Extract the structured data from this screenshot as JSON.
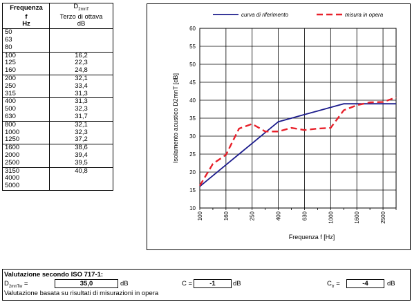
{
  "table": {
    "head_freq": [
      "Frequenza",
      "f",
      "Hz"
    ],
    "head_d": "D",
    "head_d_sub": "2mnT",
    "head_d2": "Terzo di ottava",
    "head_d3": "dB",
    "rows": [
      {
        "f": "50",
        "v": ""
      },
      {
        "f": "63",
        "v": ""
      },
      {
        "f": "80",
        "v": ""
      },
      {
        "f": "100",
        "v": "16,2"
      },
      {
        "f": "125",
        "v": "22,3"
      },
      {
        "f": "160",
        "v": "24,8"
      },
      {
        "f": "200",
        "v": "32,1"
      },
      {
        "f": "250",
        "v": "33,4"
      },
      {
        "f": "315",
        "v": "31,3"
      },
      {
        "f": "400",
        "v": "31,3"
      },
      {
        "f": "500",
        "v": "32,3"
      },
      {
        "f": "630",
        "v": "31,7"
      },
      {
        "f": "800",
        "v": "32,1"
      },
      {
        "f": "1000",
        "v": "32,3"
      },
      {
        "f": "1250",
        "v": "37,2"
      },
      {
        "f": "1600",
        "v": "38,6"
      },
      {
        "f": "2000",
        "v": "39,4"
      },
      {
        "f": "2500",
        "v": "39,5"
      },
      {
        "f": "3150",
        "v": "40,8"
      },
      {
        "f": "4000",
        "v": ""
      },
      {
        "f": "5000",
        "v": ""
      }
    ]
  },
  "chart_data": {
    "type": "line",
    "ylabel": "Isolamento acustico D2mnT [dB]",
    "xlabel": "Frequenza f [Hz]",
    "x_categories": [
      "100",
      "125",
      "160",
      "200",
      "250",
      "315",
      "400",
      "500",
      "630",
      "800",
      "1000",
      "1250",
      "1600",
      "2000",
      "2500",
      "3150"
    ],
    "x_tick_labels": [
      "100",
      "160",
      "250",
      "400",
      "630",
      "1000",
      "1600",
      "2500"
    ],
    "ylim": [
      10,
      60
    ],
    "y_ticks": [
      10,
      15,
      20,
      25,
      30,
      35,
      40,
      45,
      50,
      55,
      60
    ],
    "grid": true,
    "legend_position": "top",
    "series": [
      {
        "name": "curva di riferimento",
        "color": "#1c1c8c",
        "dash": "solid",
        "values": [
          16,
          19,
          22,
          25,
          28,
          31,
          34,
          35,
          36,
          37,
          38,
          39,
          39,
          39,
          39,
          39
        ]
      },
      {
        "name": "misura in opera",
        "color": "#e8202a",
        "dash": "dashed",
        "values": [
          16.2,
          22.3,
          24.8,
          32.1,
          33.4,
          31.3,
          31.3,
          32.3,
          31.7,
          32.1,
          32.3,
          37.2,
          38.6,
          39.4,
          39.5,
          40.8
        ]
      }
    ]
  },
  "valutazione": {
    "title": "Valutazione secondo ISO 717-1:",
    "dnt_label": "D",
    "dnt_sub": "2mnTw",
    "dnt_eq": "=",
    "dnt_value": "35,0",
    "unit": "dB",
    "c_label": "C =",
    "c_value": "-1",
    "ctr_label": "C",
    "ctr_sub": "tr",
    "ctr_eq": "=",
    "ctr_value": "-4",
    "note": "Valutazione basata su risultati di misurazioni in opera"
  }
}
